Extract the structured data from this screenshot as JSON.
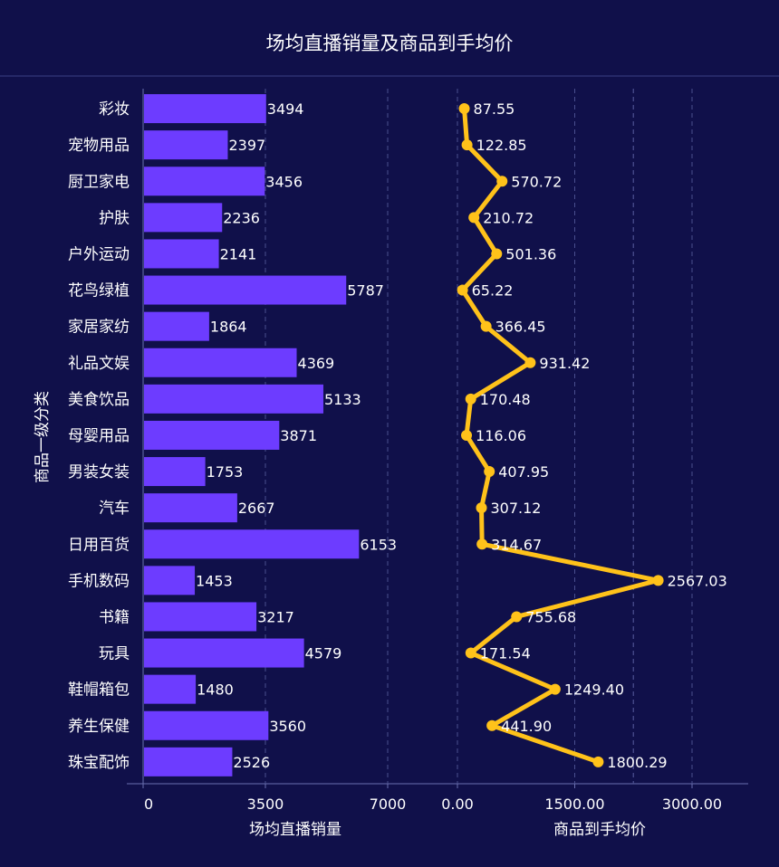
{
  "chart_data": {
    "type": "bar+line",
    "title": "场均直播销量及商品到手均价",
    "ylabel": "商品一级分类",
    "categories": [
      "彩妆",
      "宠物用品",
      "厨卫家电",
      "护肤",
      "户外运动",
      "花鸟绿植",
      "家居家纺",
      "礼品文娱",
      "美食饮品",
      "母婴用品",
      "男装女装",
      "汽车",
      "日用百货",
      "手机数码",
      "书籍",
      "玩具",
      "鞋帽箱包",
      "养生保健",
      "珠宝配饰"
    ],
    "bar_series": {
      "name": "场均直播销量",
      "values": [
        3494,
        2397,
        3456,
        2236,
        2141,
        5787,
        1864,
        4369,
        5133,
        3871,
        1753,
        2667,
        6153,
        1453,
        3217,
        4579,
        1480,
        3560,
        2526
      ],
      "value_labels": [
        "3494",
        "2397",
        "3456",
        "2236",
        "2141",
        "5787",
        "1864",
        "4369",
        "5133",
        "3871",
        "1753",
        "2667",
        "6153",
        "1453",
        "3217",
        "4579",
        "1480",
        "3560",
        "2526"
      ],
      "xlabel": "场均直播销量",
      "xlim": [
        0,
        7000
      ],
      "ticks": [
        "0",
        "3500",
        "7000"
      ],
      "tick_values": [
        0,
        3500,
        7000
      ],
      "color": "#6d3cff"
    },
    "line_series": {
      "name": "商品到手均价",
      "values": [
        87.55,
        122.85,
        570.72,
        210.72,
        501.36,
        65.22,
        366.45,
        931.42,
        170.48,
        116.06,
        407.95,
        307.12,
        314.67,
        2567.03,
        755.68,
        171.54,
        1249.4,
        441.9,
        1800.29
      ],
      "value_labels": [
        "87.55",
        "122.85",
        "570.72",
        "210.72",
        "501.36",
        "65.22",
        "366.45",
        "931.42",
        "170.48",
        "116.06",
        "407.95",
        "307.12",
        "314.67",
        "2567.03",
        "755.68",
        "171.54",
        "1249.40",
        "441.90",
        "1800.29"
      ],
      "xlabel": "商品到手均价",
      "xlim": [
        0,
        3000
      ],
      "ticks": [
        "0.00",
        "1500.00",
        "3000.00"
      ],
      "tick_values": [
        0,
        1500,
        3000
      ],
      "color": "#ffc21a"
    },
    "grid": true,
    "colors": {
      "background": "#10104a",
      "grid": "#4a4f8f",
      "text": "#ffffff"
    }
  }
}
